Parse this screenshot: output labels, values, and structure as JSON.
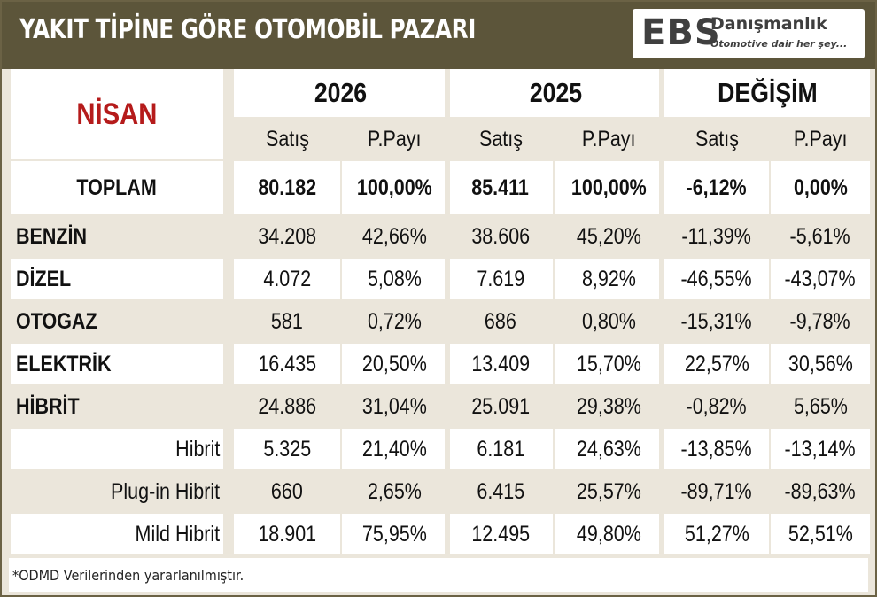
{
  "title": "YAKIT TİPİNE GÖRE OTOMOBİL PAZARI",
  "logo": {
    "main": "EBS",
    "sub": "Danışmanlık",
    "tagline": "Otomotive dair her şey..."
  },
  "month": "NİSAN",
  "groups": [
    "2026",
    "2025",
    "DEĞİŞİM"
  ],
  "subheaders": [
    "Satış",
    "P.Payı",
    "Satış",
    "P.Payı",
    "Satış",
    "P.Payı"
  ],
  "rows": [
    {
      "label": "TOPLAM",
      "values": [
        "80.182",
        "100,00%",
        "85.411",
        "100,00%",
        "-6,12%",
        "0,00%"
      ]
    },
    {
      "label": "BENZİN",
      "values": [
        "34.208",
        "42,66%",
        "38.606",
        "45,20%",
        "-11,39%",
        "-5,61%"
      ]
    },
    {
      "label": "DİZEL",
      "values": [
        "4.072",
        "5,08%",
        "7.619",
        "8,92%",
        "-46,55%",
        "-43,07%"
      ]
    },
    {
      "label": "OTOGAZ",
      "values": [
        "581",
        "0,72%",
        "686",
        "0,80%",
        "-15,31%",
        "-9,78%"
      ]
    },
    {
      "label": "ELEKTRİK",
      "values": [
        "16.435",
        "20,50%",
        "13.409",
        "15,70%",
        "22,57%",
        "30,56%"
      ]
    },
    {
      "label": "HİBRİT",
      "values": [
        "24.886",
        "31,04%",
        "25.091",
        "29,38%",
        "-0,82%",
        "5,65%"
      ]
    },
    {
      "label": "Hibrit",
      "values": [
        "5.325",
        "21,40%",
        "6.181",
        "24,63%",
        "-13,85%",
        "-13,14%"
      ]
    },
    {
      "label": "Plug-in Hibrit",
      "values": [
        "660",
        "2,65%",
        "6.415",
        "25,57%",
        "-89,71%",
        "-89,63%"
      ]
    },
    {
      "label": "Mild Hibrit",
      "values": [
        "18.901",
        "75,95%",
        "12.495",
        "49,80%",
        "51,27%",
        "52,51%"
      ]
    }
  ],
  "footnote": "*ODMD Verilerinden yararlanılmıştır.",
  "colors": {
    "header_bg": "#5c553a",
    "accent_red": "#b51b1b",
    "beige": "#ebe6db"
  }
}
